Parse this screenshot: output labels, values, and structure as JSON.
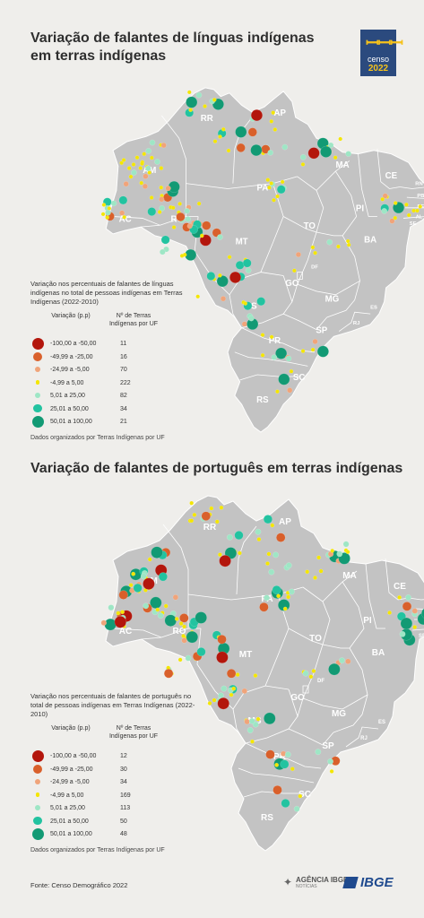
{
  "title1": "Variação de falantes de línguas indígenas em terras indígenas",
  "title2": "Variação de falantes de português em terras indígenas",
  "logo": {
    "word": "censo",
    "year": "2022"
  },
  "colors": {
    "map_fill": "#c3c3c3",
    "map_border": "#ffffff",
    "cat": [
      "#b3160c",
      "#d9602b",
      "#f0a47a",
      "#f4e600",
      "#9ee6c5",
      "#22c3a0",
      "#129a74"
    ]
  },
  "state_labels": [
    "RR",
    "AP",
    "AM",
    "PA",
    "MA",
    "CE",
    "RN",
    "PB",
    "PE",
    "AL",
    "SE",
    "PI",
    "AC",
    "RO",
    "MT",
    "TO",
    "BA",
    "GO",
    "DF",
    "MG",
    "ES",
    "MS",
    "SP",
    "RJ",
    "PR",
    "SC",
    "RS"
  ],
  "legend1": {
    "description": "Variação nos percentuais de falantes de línguas indígenas no total de pessoas indígenas em Terras Indígenas (2022-2010)",
    "col1": "Variação (p.p)",
    "col2": "Nº de Terras Indígenas por UF",
    "rows": [
      {
        "range": "-100,00 a -50,00",
        "count": "11"
      },
      {
        "range": "-49,99 a -25,00",
        "count": "16"
      },
      {
        "range": "-24,99 a -5,00",
        "count": "70"
      },
      {
        "range": "-4,99 a 5,00",
        "count": "222"
      },
      {
        "range": "5,01 a 25,00",
        "count": "82"
      },
      {
        "range": "25,01 a 50,00",
        "count": "34"
      },
      {
        "range": "50,01 a 100,00",
        "count": "21"
      }
    ],
    "note": "Dados organizados por Terras Indígenas por UF"
  },
  "legend2": {
    "description": "Variação nos percentuais de falantes de português no total de pessoas indígenas em Terras Indígenas (2022-2010)",
    "col1": "Variação (p.p)",
    "col2": "Nº de Terras Indígenas por UF",
    "rows": [
      {
        "range": "-100,00 a -50,00",
        "count": "12"
      },
      {
        "range": "-49,99 a -25,00",
        "count": "30"
      },
      {
        "range": "-24,99 a -5,00",
        "count": "34"
      },
      {
        "range": "-4,99 a 5,00",
        "count": "169"
      },
      {
        "range": "5,01 a 25,00",
        "count": "113"
      },
      {
        "range": "25,01 a 50,00",
        "count": "50"
      },
      {
        "range": "50,01 a 100,00",
        "count": "48"
      }
    ],
    "note": "Dados organizados por Terras Indígenas por UF"
  },
  "source": "Fonte: Censo Demográfico 2022",
  "agencia": {
    "line1": "AGÊNCIA IBGE",
    "line2": "NOTÍCIAS"
  },
  "ibge": "IBGE"
}
